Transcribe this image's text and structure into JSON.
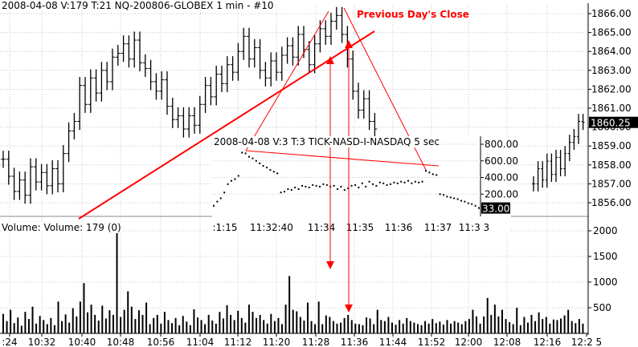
{
  "header": {
    "main": "2008-04-08  V:179    T:21  NQ-200806-GLOBEX  1 min  - #10",
    "inset": "2008-04-08  V:3    T:3  TICK-NASD-I-NASDAQ  5 sec",
    "volume": "Volume:  Volume: 179   (0)"
  },
  "annotation": {
    "previous_close": "Previous Day's Close"
  },
  "colors": {
    "bars": "#000000",
    "annotation": "#ff0000",
    "grid": "#c8c8c8",
    "last_value_bg": "#000000"
  },
  "chart_data": [
    {
      "type": "ohlc",
      "x_ticks": [
        ":24",
        "10:32",
        "10:40",
        "10:48",
        "10:56",
        "11:04",
        "11:12",
        "11:20",
        "11:28",
        "11:36",
        "11:44",
        "11:52",
        "12:00",
        "12:08",
        "12:16",
        "12:2 5"
      ],
      "y_ticks": [
        1856.0,
        1857.0,
        1858.0,
        1859.0,
        1860.0,
        1861.0,
        1862.0,
        1863.0,
        1864.0,
        1865.0,
        1866.0
      ],
      "ylim": [
        1855.2,
        1866.3
      ],
      "last_value": "1860.25",
      "series_close": [
        1858.3,
        1857.4,
        1856.6,
        1857.2,
        1856.4,
        1857.9,
        1857.1,
        1857.6,
        1856.9,
        1857.8,
        1857.0,
        1858.6,
        1859.8,
        1860.3,
        1862.2,
        1861.2,
        1862.6,
        1861.8,
        1863.0,
        1862.4,
        1863.7,
        1863.9,
        1864.4,
        1863.6,
        1864.6,
        1863.4,
        1863.1,
        1862.4,
        1861.9,
        1862.5,
        1861.1,
        1860.4,
        1860.6,
        1859.9,
        1860.6,
        1860.1,
        1861.2,
        1862.2,
        1861.6,
        1862.8,
        1862.3,
        1863.3,
        1862.9,
        1864.0,
        1864.8,
        1863.6,
        1864.2,
        1863.0,
        1862.6,
        1863.5,
        1862.9,
        1863.8,
        1864.3,
        1863.7,
        1864.9,
        1864.1,
        1863.3,
        1864.4,
        1865.2,
        1864.8,
        1865.6,
        1865.9,
        1864.9,
        1863.6,
        1861.9,
        1860.9,
        1861.5,
        1860.3,
        1859.9
      ],
      "series_close_right": [
        1857.0,
        1857.8,
        1857.2,
        1858.2,
        1857.5,
        1858.4,
        1857.8,
        1858.6,
        1859.2,
        1859.5,
        1860.3,
        1860.25
      ]
    },
    {
      "type": "bar",
      "name": "Volume",
      "y_ticks": [
        500,
        1000,
        1500,
        2000
      ],
      "ylim": [
        0,
        2200
      ],
      "values": [
        380,
        240,
        460,
        200,
        310,
        150,
        420,
        280,
        520,
        190,
        340,
        260,
        180,
        300,
        160,
        620,
        240,
        370,
        210,
        490,
        330,
        620,
        980,
        410,
        560,
        360,
        250,
        540,
        290,
        450,
        360,
        2050,
        320,
        460,
        820,
        520,
        280,
        450,
        360,
        600,
        180,
        300,
        360,
        190,
        420,
        260,
        200,
        300,
        160,
        340,
        230,
        160,
        470,
        310,
        260,
        180,
        360,
        250,
        190,
        420,
        290,
        550,
        360,
        260,
        440,
        300,
        210,
        560,
        420,
        300,
        360,
        260,
        190,
        380,
        240,
        300,
        180,
        560,
        1120,
        460,
        430,
        320,
        250,
        600,
        240,
        180,
        620,
        180,
        350,
        320,
        240,
        190,
        210,
        300,
        360,
        260,
        190,
        180,
        160,
        310,
        290,
        180,
        460,
        260,
        240,
        320,
        210,
        170,
        260,
        190,
        300,
        240,
        210,
        180,
        160,
        240,
        190,
        280,
        200,
        230,
        170,
        260,
        190,
        240,
        210,
        180,
        240,
        280,
        460,
        330,
        190,
        330,
        690,
        360,
        560,
        330,
        460,
        280,
        220,
        180,
        500,
        160,
        320,
        210,
        360,
        240,
        410,
        280,
        320,
        190,
        270,
        260,
        290,
        350,
        460,
        240,
        200,
        280,
        190
      ]
    },
    {
      "type": "line",
      "name": "TICK-NASD-I-NASDAQ",
      "x_ticks": [
        ":1:15",
        "11:32:40",
        "11:34",
        "11:35",
        "11:36",
        "11:37",
        "11:3 3"
      ],
      "y_ticks": [
        200,
        400,
        600,
        800
      ],
      "ylim": [
        0,
        900
      ],
      "last_value": "33.00",
      "values": [
        60,
        110,
        150,
        220,
        320,
        360,
        380,
        420,
        700,
        690,
        650,
        630,
        600,
        570,
        540,
        520,
        490,
        470,
        450,
        220,
        230,
        260,
        250,
        280,
        260,
        300,
        290,
        280,
        310,
        300,
        290,
        320,
        310,
        290,
        300,
        260,
        290,
        250,
        270,
        300,
        310,
        280,
        330,
        290,
        350,
        320,
        300,
        340,
        330,
        310,
        320,
        340,
        330,
        350,
        340,
        360,
        330,
        350,
        340,
        350,
        480,
        460,
        440,
        430,
        200,
        190,
        170,
        160,
        150,
        140,
        120,
        110,
        90,
        80,
        60,
        33
      ]
    }
  ]
}
